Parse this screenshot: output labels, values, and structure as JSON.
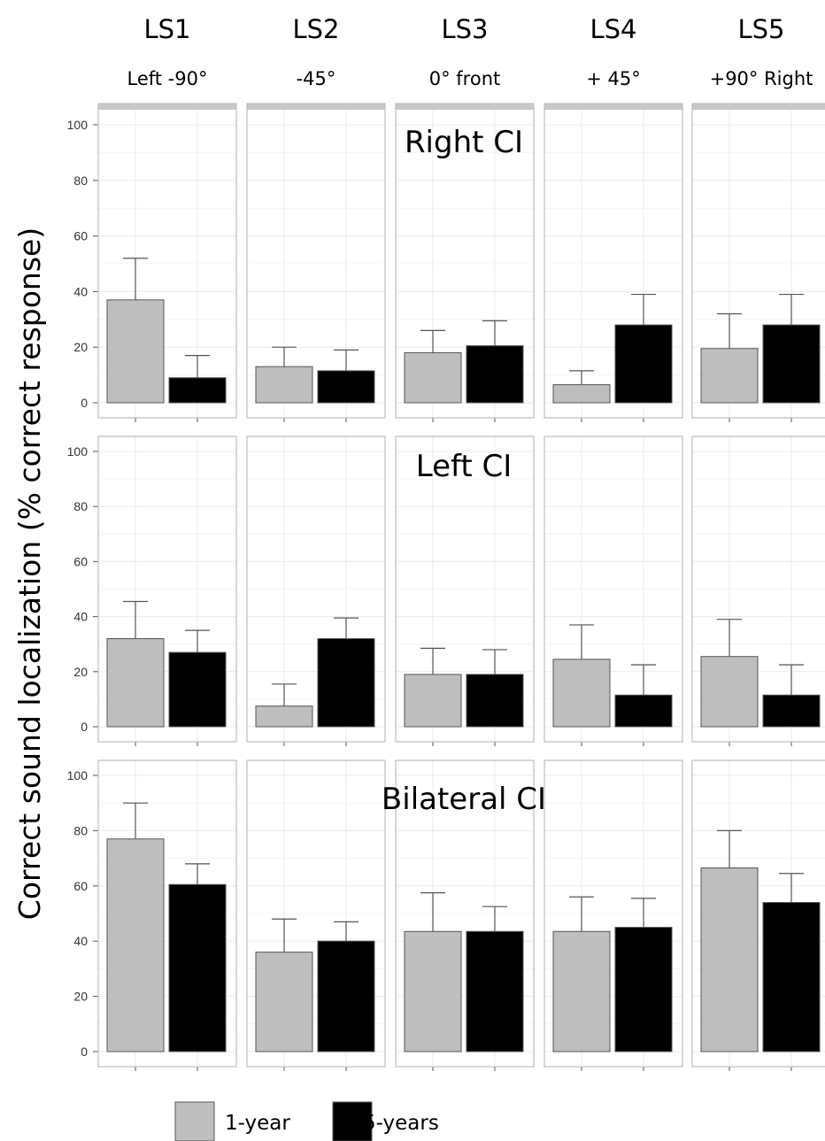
{
  "chart_data": {
    "type": "bar",
    "ylabel": "Correct sound localization (% correct response)",
    "ylim": [
      0,
      100
    ],
    "yticks": [
      0,
      20,
      40,
      60,
      80,
      100
    ],
    "grid": true,
    "legend_position": "bottom-left",
    "columns": [
      {
        "name": "LS1",
        "angle": "Left  -90°"
      },
      {
        "name": "LS2",
        "angle": "-45°"
      },
      {
        "name": "LS3",
        "angle": "0° front"
      },
      {
        "name": "LS4",
        "angle": "+ 45°"
      },
      {
        "name": "LS5",
        "angle": "+90° Right"
      }
    ],
    "series": [
      {
        "name": "1-year",
        "color": "#bebebe"
      },
      {
        "name": "5-years",
        "color": "#000000"
      }
    ],
    "rows": [
      {
        "title": "Right CI",
        "values": {
          "1-year": [
            37,
            13,
            18,
            6.5,
            19.5
          ],
          "5-years": [
            9,
            11.5,
            20.5,
            28,
            28
          ]
        },
        "error_upper": {
          "1-year": [
            52,
            20,
            26,
            11.5,
            32
          ],
          "5-years": [
            17,
            19,
            29.5,
            39,
            39
          ]
        }
      },
      {
        "title": "Left CI",
        "values": {
          "1-year": [
            32,
            7.5,
            19,
            24.5,
            25.5
          ],
          "5-years": [
            27,
            32,
            19,
            11.5,
            11.5
          ]
        },
        "error_upper": {
          "1-year": [
            45.5,
            15.5,
            28.5,
            37,
            39
          ],
          "5-years": [
            35,
            39.5,
            28,
            22.5,
            22.5
          ]
        }
      },
      {
        "title": "Bilateral CI",
        "values": {
          "1-year": [
            77,
            36,
            43.5,
            43.5,
            66.5
          ],
          "5-years": [
            60.5,
            40,
            43.5,
            45,
            54
          ]
        },
        "error_upper": {
          "1-year": [
            90,
            48,
            57.5,
            56,
            80
          ],
          "5-years": [
            68,
            47,
            52.5,
            55.5,
            64.5
          ]
        }
      }
    ]
  }
}
